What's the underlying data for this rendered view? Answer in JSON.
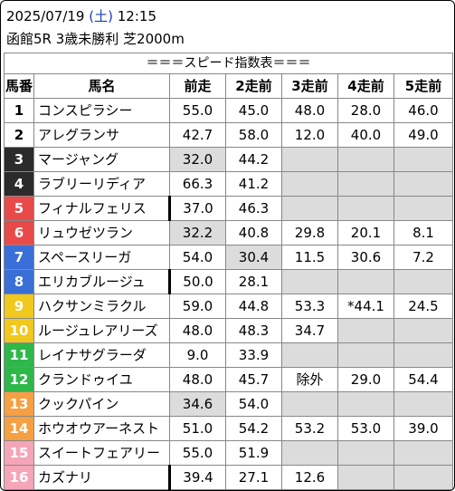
{
  "header": {
    "date": "2025/07/19",
    "dow_open": "(",
    "dow": "土",
    "dow_close": ")",
    "time": "12:15",
    "race": "函館5R 3歳未勝利 芝2000m"
  },
  "table": {
    "title": "＝＝＝スピード指数表＝＝＝",
    "columns": [
      "馬番",
      "馬名",
      "前走",
      "2走前",
      "3走前",
      "4走前",
      "5走前"
    ],
    "rows": [
      {
        "num": "1",
        "name": "コンスピラシー",
        "v": [
          "55.0",
          "45.0",
          "48.0",
          "28.0",
          "46.0"
        ],
        "bg": "#ffffff",
        "fg": "#000000",
        "thick": false,
        "gray": [
          false,
          false,
          false,
          false,
          false
        ]
      },
      {
        "num": "2",
        "name": "アレグランサ",
        "v": [
          "42.7",
          "58.0",
          "12.0",
          "40.0",
          "49.0"
        ],
        "bg": "#ffffff",
        "fg": "#000000",
        "thick": false,
        "gray": [
          false,
          false,
          false,
          false,
          false
        ]
      },
      {
        "num": "3",
        "name": "マージャング",
        "v": [
          "32.0",
          "44.2",
          "",
          "",
          ""
        ],
        "bg": "#2b2b2b",
        "fg": "#ffffff",
        "thick": false,
        "gray": [
          true,
          false,
          true,
          true,
          true
        ]
      },
      {
        "num": "4",
        "name": "ラブリーリディア",
        "v": [
          "66.3",
          "41.2",
          "",
          "",
          ""
        ],
        "bg": "#2b2b2b",
        "fg": "#ffffff",
        "thick": false,
        "gray": [
          false,
          false,
          true,
          true,
          true
        ]
      },
      {
        "num": "5",
        "name": "フィナルフェリス",
        "v": [
          "37.0",
          "46.3",
          "",
          "",
          ""
        ],
        "bg": "#e84a4a",
        "fg": "#ffffff",
        "thick": true,
        "gray": [
          false,
          false,
          true,
          true,
          true
        ]
      },
      {
        "num": "6",
        "name": "リュウゼツラン",
        "v": [
          "32.2",
          "40.8",
          "29.8",
          "20.1",
          "8.1"
        ],
        "bg": "#e84a4a",
        "fg": "#ffffff",
        "thick": false,
        "gray": [
          true,
          false,
          false,
          false,
          false
        ]
      },
      {
        "num": "7",
        "name": "スペースリーガ",
        "v": [
          "54.0",
          "30.4",
          "11.5",
          "30.6",
          "7.2"
        ],
        "bg": "#3a6fd8",
        "fg": "#ffffff",
        "thick": false,
        "gray": [
          false,
          true,
          false,
          false,
          false
        ]
      },
      {
        "num": "8",
        "name": "エリカブルージュ",
        "v": [
          "50.0",
          "28.1",
          "",
          "",
          ""
        ],
        "bg": "#3a6fd8",
        "fg": "#ffffff",
        "thick": true,
        "gray": [
          false,
          false,
          true,
          true,
          true
        ]
      },
      {
        "num": "9",
        "name": "ハクサンミラクル",
        "v": [
          "59.0",
          "44.8",
          "53.3",
          "*44.1",
          "24.5"
        ],
        "bg": "#f0c81e",
        "fg": "#ffffff",
        "thick": false,
        "gray": [
          false,
          false,
          false,
          false,
          false
        ]
      },
      {
        "num": "10",
        "name": "ルージュレアリーズ",
        "v": [
          "48.0",
          "48.3",
          "34.7",
          "",
          ""
        ],
        "bg": "#f0c81e",
        "fg": "#ffffff",
        "thick": false,
        "gray": [
          false,
          false,
          false,
          true,
          true
        ]
      },
      {
        "num": "11",
        "name": "レイナサグラーダ",
        "v": [
          "9.0",
          "33.9",
          "",
          "",
          ""
        ],
        "bg": "#2fb84a",
        "fg": "#ffffff",
        "thick": false,
        "gray": [
          false,
          false,
          true,
          true,
          true
        ]
      },
      {
        "num": "12",
        "name": "クランドゥイユ",
        "v": [
          "48.0",
          "45.7",
          "除外",
          "29.0",
          "54.4"
        ],
        "bg": "#2fb84a",
        "fg": "#ffffff",
        "thick": false,
        "gray": [
          false,
          false,
          false,
          false,
          false
        ]
      },
      {
        "num": "13",
        "name": "クックパイン",
        "v": [
          "34.6",
          "54.0",
          "",
          "",
          ""
        ],
        "bg": "#f5a042",
        "fg": "#ffffff",
        "thick": false,
        "gray": [
          true,
          false,
          true,
          true,
          true
        ]
      },
      {
        "num": "14",
        "name": "ホウオウアーネスト",
        "v": [
          "51.0",
          "54.2",
          "53.2",
          "53.0",
          "39.0"
        ],
        "bg": "#f5a042",
        "fg": "#ffffff",
        "thick": false,
        "gray": [
          false,
          false,
          false,
          false,
          false
        ]
      },
      {
        "num": "15",
        "name": "スイートフェアリー",
        "v": [
          "55.0",
          "51.9",
          "",
          "",
          ""
        ],
        "bg": "#f4a6b8",
        "fg": "#ffffff",
        "thick": false,
        "gray": [
          false,
          false,
          true,
          true,
          true
        ]
      },
      {
        "num": "16",
        "name": "カズナリ",
        "v": [
          "39.4",
          "27.1",
          "12.6",
          "",
          ""
        ],
        "bg": "#f4a6b8",
        "fg": "#ffffff",
        "thick": true,
        "gray": [
          false,
          false,
          false,
          true,
          true
        ]
      }
    ]
  }
}
